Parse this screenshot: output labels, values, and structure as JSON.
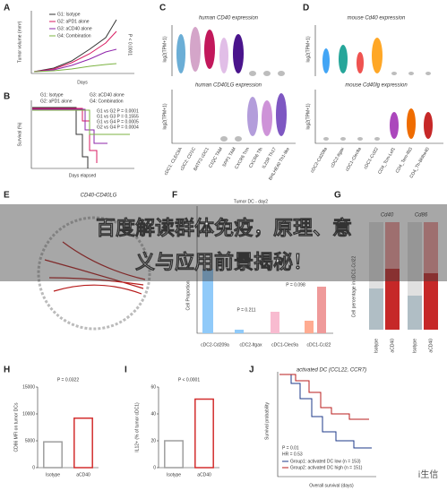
{
  "banner": {
    "line1": "百度解读群体免疫，原理、意",
    "line2": "义与应用前景揭秘！"
  },
  "watermark": "i生信",
  "panels": {
    "A": {
      "label": "A",
      "legend": [
        "G1: Isotype",
        "G2: aPD1 alone",
        "G3: aCD40 alone",
        "G4: Combination"
      ],
      "xlabel": "Days",
      "ylabel": "Tumor volume (mm³)",
      "pvalue": "P < 0.0001"
    },
    "B": {
      "label": "B",
      "legend": [
        "G1: Isotype",
        "G2: aPD1 alone",
        "G3: aCD40 alone",
        "G4: Combination"
      ],
      "stats": [
        "G1 vs G2 P = 0.0001",
        "G1 vs G3 P = 0.1555",
        "G1 vs G4 P = 0.0005",
        "G2 vs G4 P = 0.0004"
      ],
      "xlabel": "Days elapsed",
      "ylabel": "Survival (%)"
    },
    "C": {
      "label": "C",
      "title1": "human CD40 expression",
      "title2": "human CD40LG expression",
      "ylabel": "log2(TPM+1)",
      "categories": [
        "cDC1: CLEC9A",
        "cDC2: CD1C",
        "BATF3 cDC1",
        "C1QC TAM",
        "SPP1 TAM",
        "CXCR6 Trm",
        "CXCR6 Tfh",
        "IL23R Th17",
        "BHLHE40 Th1-like"
      ]
    },
    "D": {
      "label": "D",
      "title1": "mouse Cd40 expression",
      "title2": "mouse Cd40lg expression",
      "ylabel": "log2(TPM+1)",
      "categories": [
        "cDC2-Cd209a",
        "cDC2-Itgax",
        "cDC1-Clec9a",
        "cDC1-Ccl22",
        "CD4_Tcm-Lef1",
        "CD4_Tem-Ifit3",
        "CD4_Th-Bhlhe40"
      ]
    },
    "E": {
      "label": "E",
      "title": "CD40-CD40LG"
    },
    "F": {
      "label": "F",
      "title": "Tumor DC - day2",
      "ylabel": "Cell Proportion",
      "p1": "P = 0.211",
      "p2": "P = 0.098",
      "categories": [
        "cDC2-Cd209a",
        "cDC2-Itgax",
        "cDC1-Clec9a",
        "cDC1-Ccl22"
      ]
    },
    "G": {
      "label": "G",
      "title1": "Cd40",
      "title2": "Cd86",
      "ylabel": "Cell percentage in cDC1-Ccl22",
      "categories": [
        "Isotype",
        "aCD40"
      ]
    },
    "H": {
      "label": "H",
      "pvalue": "P = 0.0322",
      "ylabel": "CD86 MFI on tumor DCs",
      "categories": [
        "Isotype",
        "aCD40"
      ],
      "values": [
        4800,
        9200
      ],
      "colors": [
        "#9e9e9e",
        "#d32f2f"
      ],
      "ylim": [
        0,
        15000
      ],
      "yticks": [
        0,
        5000,
        10000,
        15000
      ]
    },
    "I": {
      "label": "I",
      "pvalue": "P < 0.0001",
      "ylabel": "IL12+ (% of tumor cDC1)",
      "categories": [
        "Isotype",
        "aCD40"
      ],
      "values": [
        20,
        51
      ],
      "colors": [
        "#9e9e9e",
        "#d32f2f"
      ],
      "ylim": [
        0,
        60
      ],
      "yticks": [
        0,
        20,
        40,
        60
      ]
    },
    "J": {
      "label": "J",
      "title": "activated DC (CCL22, CCR7)",
      "ylabel": "Survival probability",
      "xlabel": "Overall survival (days)",
      "pvalue": "P = 0.01",
      "hr": "HR = 0.53",
      "legend": [
        "Group1: activated DC low (n = 153)",
        "Group2: activated DC high (n = 151)"
      ]
    }
  }
}
